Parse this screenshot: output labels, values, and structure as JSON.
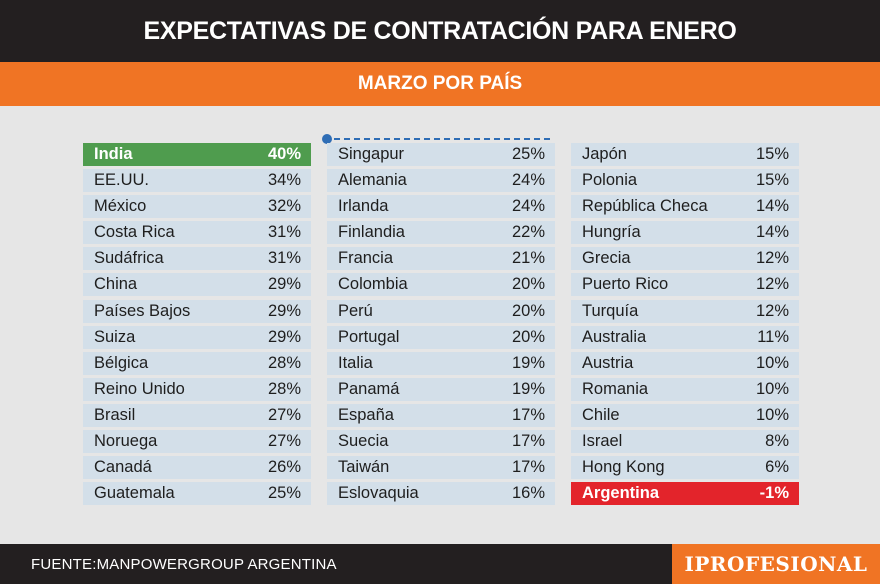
{
  "header": {
    "title": "EXPECTATIVAS DE CONTRATACIÓN PARA ENERO",
    "subtitle": "MARZO POR PAÍS"
  },
  "colors": {
    "accent": "#f07424",
    "dark": "#231f20",
    "row_bg": "#d3dfe9",
    "top": "#4f9c4e",
    "bottom": "#e3242b"
  },
  "chart_data": {
    "type": "table",
    "title": "EXPECTATIVAS DE CONTRATACIÓN PARA ENERO",
    "subtitle": "MARZO POR PAÍS",
    "columns": [
      [
        {
          "country": "India",
          "value": "40%",
          "highlight": "top"
        },
        {
          "country": "EE.UU.",
          "value": "34%"
        },
        {
          "country": "México",
          "value": "32%"
        },
        {
          "country": "Costa Rica",
          "value": "31%"
        },
        {
          "country": "Sudáfrica",
          "value": "31%"
        },
        {
          "country": "China",
          "value": "29%"
        },
        {
          "country": "Países Bajos",
          "value": "29%"
        },
        {
          "country": "Suiza",
          "value": "29%"
        },
        {
          "country": "Bélgica",
          "value": "28%"
        },
        {
          "country": "Reino Unido",
          "value": "28%"
        },
        {
          "country": "Brasil",
          "value": "27%"
        },
        {
          "country": "Noruega",
          "value": "27%"
        },
        {
          "country": "Canadá",
          "value": "26%"
        },
        {
          "country": "Guatemala",
          "value": "25%"
        }
      ],
      [
        {
          "country": "Singapur",
          "value": "25%"
        },
        {
          "country": "Alemania",
          "value": "24%"
        },
        {
          "country": "Irlanda",
          "value": "24%"
        },
        {
          "country": "Finlandia",
          "value": "22%"
        },
        {
          "country": "Francia",
          "value": "21%"
        },
        {
          "country": "Colombia",
          "value": "20%"
        },
        {
          "country": "Perú",
          "value": "20%"
        },
        {
          "country": "Portugal",
          "value": "20%"
        },
        {
          "country": "Italia",
          "value": "19%"
        },
        {
          "country": "Panamá",
          "value": "19%"
        },
        {
          "country": "España",
          "value": "17%"
        },
        {
          "country": "Suecia",
          "value": "17%"
        },
        {
          "country": "Taiwán",
          "value": "17%"
        },
        {
          "country": "Eslovaquia",
          "value": "16%"
        }
      ],
      [
        {
          "country": "Japón",
          "value": "15%"
        },
        {
          "country": "Polonia",
          "value": "15%"
        },
        {
          "country": "República Checa",
          "value": "14%"
        },
        {
          "country": "Hungría",
          "value": "14%"
        },
        {
          "country": "Grecia",
          "value": "12%"
        },
        {
          "country": "Puerto Rico",
          "value": "12%"
        },
        {
          "country": "Turquía",
          "value": "12%"
        },
        {
          "country": "Australia",
          "value": "11%"
        },
        {
          "country": "Austria",
          "value": "10%"
        },
        {
          "country": "Romania",
          "value": "10%"
        },
        {
          "country": "Chile",
          "value": "10%"
        },
        {
          "country": "Israel",
          "value": "8%"
        },
        {
          "country": "Hong Kong",
          "value": "6%"
        },
        {
          "country": "Argentina",
          "value": "-1%",
          "highlight": "bottom"
        }
      ]
    ]
  },
  "footer": {
    "source": "FUENTE:MANPOWERGROUP ARGENTINA",
    "brand": "IPROFESIONAL"
  }
}
